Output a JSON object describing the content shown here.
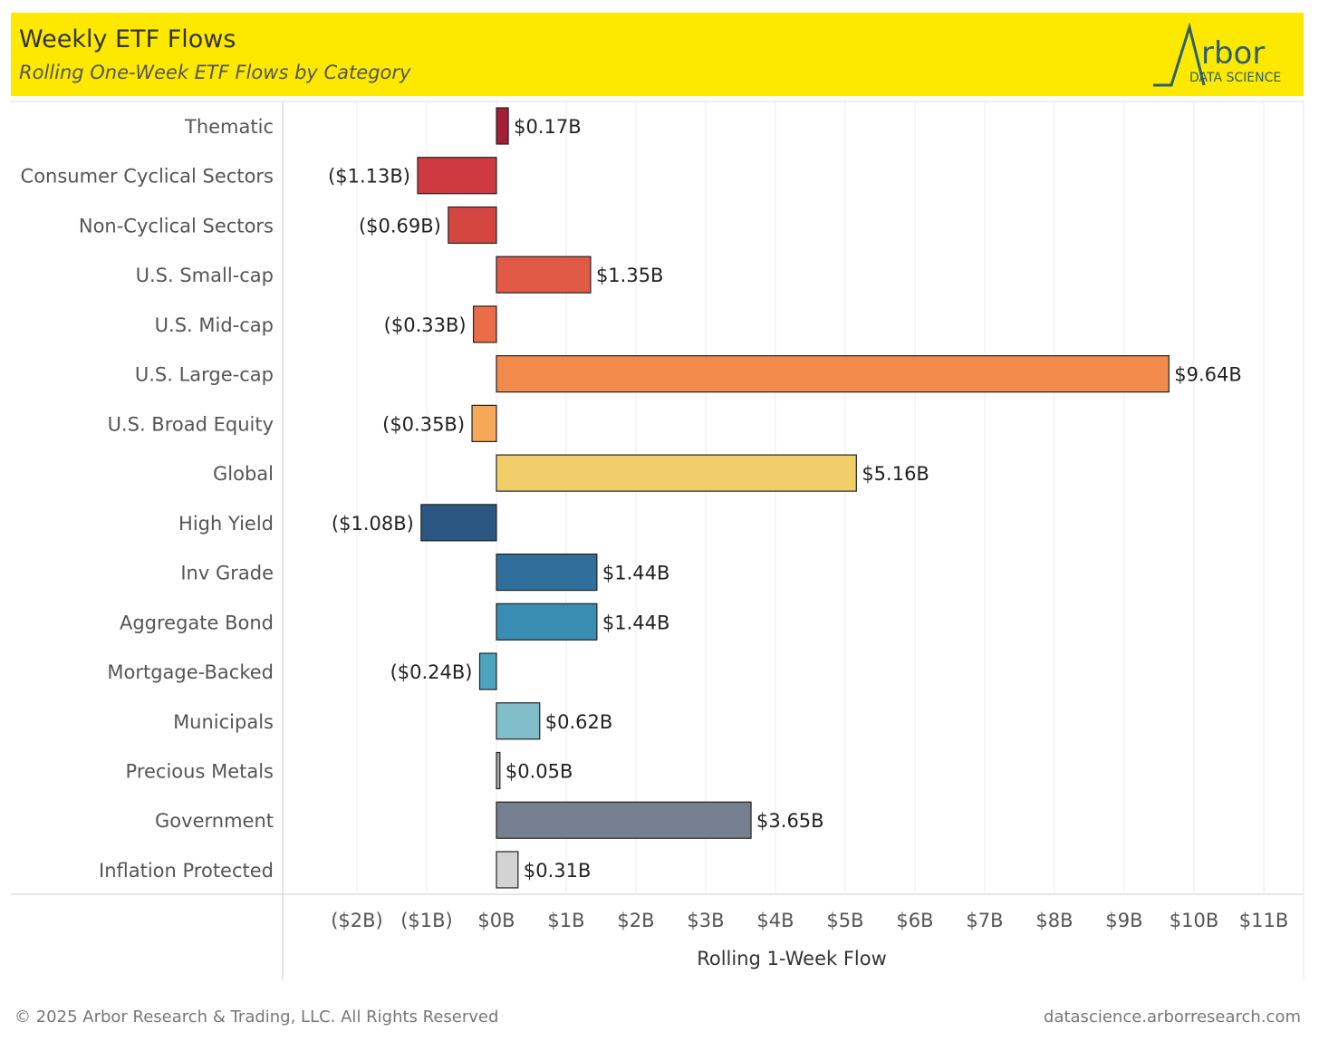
{
  "header": {
    "title": "Weekly ETF Flows",
    "subtitle": "Rolling One-Week ETF Flows by Category",
    "logo_text": "Arbor",
    "logo_subtext": "DATA SCIENCE",
    "background": "#fde900"
  },
  "footer": {
    "copyright": "© 2025 Arbor Research & Trading, LLC. All Rights Reserved",
    "website": "datascience.arborresearch.com"
  },
  "chart_data": {
    "type": "bar",
    "orientation": "horizontal",
    "xlabel": "Rolling 1-Week Flow",
    "xlim": [
      -2,
      11
    ],
    "grid": true,
    "ticks": [
      -2,
      -1,
      0,
      1,
      2,
      3,
      4,
      5,
      6,
      7,
      8,
      9,
      10,
      11
    ],
    "tick_labels": [
      "($2B)",
      "($1B)",
      "$0B",
      "$1B",
      "$2B",
      "$3B",
      "$4B",
      "$5B",
      "$6B",
      "$7B",
      "$8B",
      "$9B",
      "$10B",
      "$11B"
    ],
    "categories": [
      "Thematic",
      "Consumer Cyclical Sectors",
      "Non-Cyclical Sectors",
      "U.S. Small-cap",
      "U.S. Mid-cap",
      "U.S. Large-cap",
      "U.S. Broad Equity",
      "Global",
      "High Yield",
      "Inv Grade",
      "Aggregate Bond",
      "Mortgage-Backed",
      "Municipals",
      "Precious Metals",
      "Government",
      "Inflation Protected"
    ],
    "values": [
      0.17,
      -1.13,
      -0.69,
      1.35,
      -0.33,
      9.64,
      -0.35,
      5.16,
      -1.08,
      1.44,
      1.44,
      -0.24,
      0.62,
      0.05,
      3.65,
      0.31
    ],
    "value_labels": [
      "$0.17B",
      "($1.13B)",
      "($0.69B)",
      "$1.35B",
      "($0.33B)",
      "$9.64B",
      "($0.35B)",
      "$5.16B",
      "($1.08B)",
      "$1.44B",
      "$1.44B",
      "($0.24B)",
      "$0.62B",
      "$0.05B",
      "$3.65B",
      "$0.31B"
    ],
    "colors": [
      "#a51e37",
      "#cf3a40",
      "#d4463f",
      "#e05a45",
      "#ea6c48",
      "#f28a4c",
      "#f6a75a",
      "#f0cf6a",
      "#2b5783",
      "#2f6e9a",
      "#3a8db2",
      "#4ba5c0",
      "#80bfc9",
      "#a8a8a8",
      "#767f8f",
      "#d3d3d3"
    ]
  }
}
